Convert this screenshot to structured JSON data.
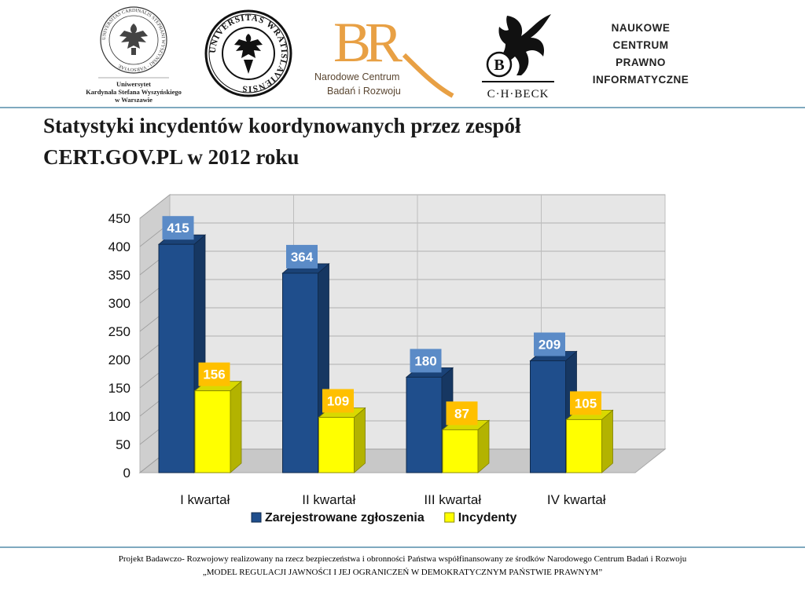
{
  "header": {
    "logos": {
      "uksw": {
        "ring_text": "UNIVERSITAS CARDINALIS STEPHANI WYSZYNSKI · VARSOVIAE",
        "caption_lines": [
          "Uniwersytet",
          "Kardynała Stefana Wyszyńskiego",
          "w Warszawie"
        ]
      },
      "uwr": {
        "ring_text": "UNIVERSITAS WRATISLAVIENSIS"
      },
      "ncbr": {
        "monogram": "BR",
        "caption_lines": [
          "Narodowe Centrum",
          "Badań i Rozwoju"
        ]
      },
      "beck": {
        "badge": "B",
        "caption": "C·H·BECK"
      },
      "ncpi": {
        "lines": [
          "NAUKOWE",
          "CENTRUM",
          "PRAWNO",
          "INFORMATYCZNE"
        ]
      }
    }
  },
  "title_lines": [
    "Statystyki incydentów koordynowanych przez zespół",
    "CERT.GOV.PL w 2012 roku"
  ],
  "chart_data": {
    "type": "bar",
    "categories": [
      "I kwartał",
      "II kwartał",
      "III kwartał",
      "IV kwartał"
    ],
    "series": [
      {
        "name": "Zarejestrowane zgłoszenia",
        "values": [
          415,
          364,
          180,
          209
        ]
      },
      {
        "name": "Incydenty",
        "values": [
          156,
          109,
          87,
          105
        ]
      }
    ],
    "ylim": [
      0,
      450
    ],
    "yticks": [
      0,
      50,
      100,
      150,
      200,
      250,
      300,
      350,
      400,
      450
    ],
    "grid": true,
    "legend": "bottom",
    "style": "3d-clustered-columns",
    "colors": {
      "series_1": "#1f4e8c",
      "series_1_label_bg": "#5b8bc7",
      "series_2": "#ffff00",
      "series_2_label_bg": "#ffc000",
      "wall": "#e6e6e6",
      "floor": "#c8c8c8"
    }
  },
  "footer_lines": [
    "Projekt Badawczo- Rozwojowy realizowany na rzecz bezpieczeństwa i obronności Państwa współfinansowany ze środków Narodowego Centrum Badań i Rozwoju",
    "„MODEL REGULACJI JAWNOŚCI I JEJ OGRANICZEŃ W DEMOKRATYCZNYM PAŃSTWIE PRAWNYM”"
  ]
}
